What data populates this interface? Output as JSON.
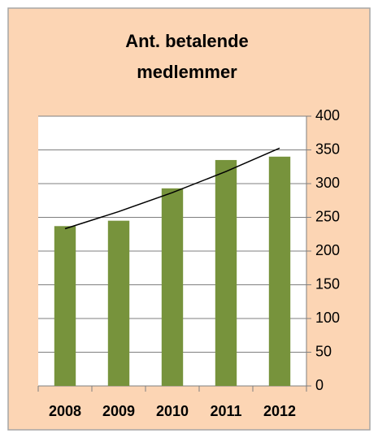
{
  "chart_data": {
    "type": "bar",
    "title": [
      "Ant. betalende",
      "medlemmer"
    ],
    "categories": [
      "2008",
      "2009",
      "2010",
      "2011",
      "2012"
    ],
    "values": [
      237,
      245,
      293,
      335,
      340
    ],
    "color": "#77933c",
    "ylim": [
      0,
      400
    ],
    "yticks": [
      0,
      50,
      100,
      150,
      200,
      250,
      300,
      350,
      400
    ],
    "grid": true,
    "trendline": "exponential"
  }
}
